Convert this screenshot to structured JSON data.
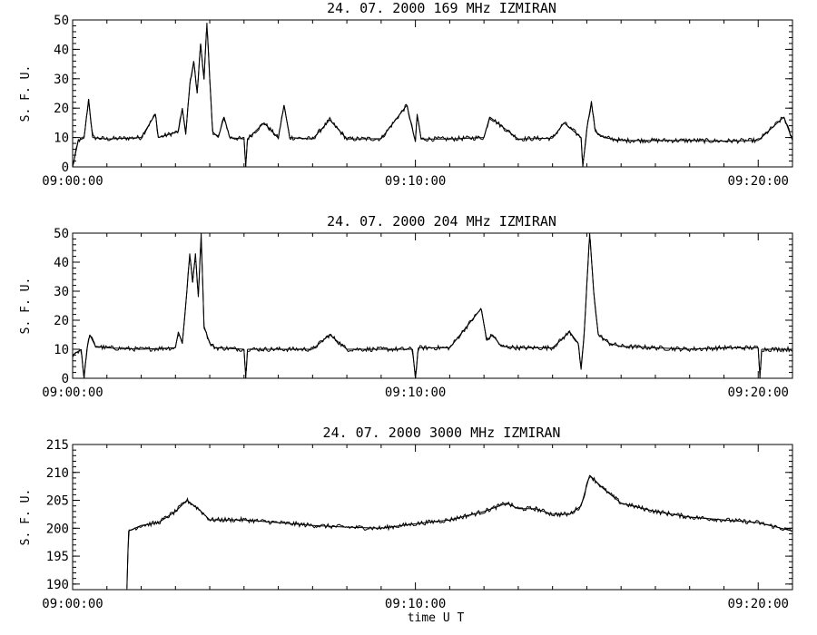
{
  "chart_data": [
    {
      "type": "line",
      "title": "24. 07. 2000   169 MHz   IZMIRAN",
      "ylabel": "S. F. U.",
      "xlabel": "",
      "x_range": [
        "09:00:00",
        "09:21:00"
      ],
      "x_ticks": [
        "09:00:00",
        "09:10:00",
        "09:20:00"
      ],
      "ylim": [
        0,
        50
      ],
      "y_ticks": [
        0,
        10,
        20,
        30,
        40,
        50
      ],
      "grid": false,
      "series": [
        {
          "baseline": 9.5,
          "points": [
            [
              "09:00:00",
              0
            ],
            [
              "09:00:10",
              9
            ],
            [
              "09:00:20",
              9.8
            ],
            [
              "09:00:28",
              23
            ],
            [
              "09:00:35",
              10
            ],
            [
              "09:01:00",
              9.5
            ],
            [
              "09:02:00",
              10
            ],
            [
              "09:02:25",
              18
            ],
            [
              "09:02:30",
              10
            ],
            [
              "09:03:05",
              12
            ],
            [
              "09:03:12",
              20
            ],
            [
              "09:03:18",
              11
            ],
            [
              "09:03:25",
              28
            ],
            [
              "09:03:32",
              36
            ],
            [
              "09:03:38",
              25
            ],
            [
              "09:03:44",
              42
            ],
            [
              "09:03:50",
              30
            ],
            [
              "09:03:55",
              49
            ],
            [
              "09:04:00",
              30
            ],
            [
              "09:04:05",
              12
            ],
            [
              "09:04:15",
              10
            ],
            [
              "09:04:25",
              17
            ],
            [
              "09:04:35",
              10
            ],
            [
              "09:05:00",
              9.5
            ],
            [
              "09:05:03",
              0
            ],
            [
              "09:05:06",
              9.5
            ],
            [
              "09:05:35",
              15
            ],
            [
              "09:06:00",
              9.8
            ],
            [
              "09:06:10",
              21
            ],
            [
              "09:06:20",
              10
            ],
            [
              "09:07:00",
              9.5
            ],
            [
              "09:07:30",
              16
            ],
            [
              "09:08:00",
              9.5
            ],
            [
              "09:09:00",
              9.6
            ],
            [
              "09:09:45",
              21
            ],
            [
              "09:10:00",
              8.5
            ],
            [
              "09:10:03",
              18
            ],
            [
              "09:10:10",
              9.5
            ],
            [
              "09:11:00",
              9.5
            ],
            [
              "09:12:00",
              10
            ],
            [
              "09:12:10",
              17
            ],
            [
              "09:12:30",
              14
            ],
            [
              "09:13:00",
              9.5
            ],
            [
              "09:14:00",
              9.8
            ],
            [
              "09:14:20",
              15
            ],
            [
              "09:14:50",
              10
            ],
            [
              "09:14:53",
              0
            ],
            [
              "09:15:00",
              13
            ],
            [
              "09:15:08",
              22
            ],
            [
              "09:15:15",
              12
            ],
            [
              "09:15:30",
              10
            ],
            [
              "09:16:00",
              9
            ],
            [
              "09:17:00",
              9
            ],
            [
              "09:18:00",
              9
            ],
            [
              "09:19:00",
              8.8
            ],
            [
              "09:20:00",
              9
            ],
            [
              "09:20:45",
              17
            ],
            [
              "09:21:00",
              9
            ]
          ]
        }
      ]
    },
    {
      "type": "line",
      "title": "24. 07. 2000   204 MHz   IZMIRAN",
      "ylabel": "S. F. U.",
      "xlabel": "",
      "x_range": [
        "09:00:00",
        "09:21:00"
      ],
      "x_ticks": [
        "09:00:00",
        "09:10:00",
        "09:20:00"
      ],
      "ylim": [
        0,
        50
      ],
      "y_ticks": [
        0,
        10,
        20,
        30,
        40,
        50
      ],
      "grid": false,
      "series": [
        {
          "baseline": 10.2,
          "points": [
            [
              "09:00:00",
              8
            ],
            [
              "09:00:15",
              10
            ],
            [
              "09:00:20",
              0
            ],
            [
              "09:00:25",
              10
            ],
            [
              "09:00:30",
              15
            ],
            [
              "09:00:40",
              11
            ],
            [
              "09:01:00",
              10.5
            ],
            [
              "09:02:00",
              10
            ],
            [
              "09:03:00",
              10.5
            ],
            [
              "09:03:05",
              16
            ],
            [
              "09:03:12",
              12
            ],
            [
              "09:03:20",
              30
            ],
            [
              "09:03:25",
              43
            ],
            [
              "09:03:30",
              33
            ],
            [
              "09:03:35",
              43
            ],
            [
              "09:03:40",
              28
            ],
            [
              "09:03:45",
              50
            ],
            [
              "09:03:50",
              18
            ],
            [
              "09:04:00",
              12
            ],
            [
              "09:04:10",
              10.5
            ],
            [
              "09:05:00",
              10
            ],
            [
              "09:05:03",
              0
            ],
            [
              "09:05:06",
              10
            ],
            [
              "09:06:00",
              10
            ],
            [
              "09:07:00",
              10
            ],
            [
              "09:07:30",
              15
            ],
            [
              "09:08:00",
              10
            ],
            [
              "09:09:00",
              10
            ],
            [
              "09:09:55",
              10
            ],
            [
              "09:10:00",
              0
            ],
            [
              "09:10:05",
              10.5
            ],
            [
              "09:11:00",
              10.5
            ],
            [
              "09:11:55",
              24
            ],
            [
              "09:12:05",
              13
            ],
            [
              "09:12:15",
              15
            ],
            [
              "09:12:30",
              11
            ],
            [
              "09:13:00",
              10.5
            ],
            [
              "09:14:00",
              10.5
            ],
            [
              "09:14:30",
              16
            ],
            [
              "09:14:45",
              12
            ],
            [
              "09:14:50",
              3
            ],
            [
              "09:14:55",
              14
            ],
            [
              "09:15:00",
              32
            ],
            [
              "09:15:05",
              50
            ],
            [
              "09:15:12",
              30
            ],
            [
              "09:15:20",
              15
            ],
            [
              "09:15:40",
              12
            ],
            [
              "09:16:00",
              11
            ],
            [
              "09:17:00",
              10.5
            ],
            [
              "09:18:00",
              10
            ],
            [
              "09:19:00",
              10.5
            ],
            [
              "09:20:00",
              10.5
            ],
            [
              "09:20:03",
              0
            ],
            [
              "09:20:06",
              10
            ],
            [
              "09:21:00",
              10
            ]
          ]
        }
      ]
    },
    {
      "type": "line",
      "title": "24. 07. 2000   3000 MHz   IZMIRAN",
      "ylabel": "S. F. U.",
      "xlabel": "time   U T",
      "x_range": [
        "09:00:00",
        "09:21:00"
      ],
      "x_ticks": [
        "09:00:00",
        "09:10:00",
        "09:20:00"
      ],
      "ylim": [
        189,
        215
      ],
      "y_ticks": [
        190,
        195,
        200,
        205,
        210,
        215
      ],
      "grid": false,
      "series": [
        {
          "points": [
            [
              "09:01:35",
              189
            ],
            [
              "09:01:38",
              199.5
            ],
            [
              "09:02:00",
              200.5
            ],
            [
              "09:02:30",
              201
            ],
            [
              "09:03:00",
              203
            ],
            [
              "09:03:20",
              205
            ],
            [
              "09:03:40",
              203.5
            ],
            [
              "09:04:00",
              201.5
            ],
            [
              "09:05:00",
              201.5
            ],
            [
              "09:06:00",
              201
            ],
            [
              "09:07:00",
              200.5
            ],
            [
              "09:08:00",
              200.2
            ],
            [
              "09:09:00",
              200
            ],
            [
              "09:10:00",
              200.8
            ],
            [
              "09:11:00",
              201.5
            ],
            [
              "09:12:00",
              203
            ],
            [
              "09:12:40",
              204.5
            ],
            [
              "09:13:00",
              203.5
            ],
            [
              "09:13:30",
              203.5
            ],
            [
              "09:14:00",
              202.5
            ],
            [
              "09:14:30",
              202.5
            ],
            [
              "09:14:50",
              204
            ],
            [
              "09:15:05",
              209.5
            ],
            [
              "09:15:30",
              207
            ],
            [
              "09:16:00",
              204.5
            ],
            [
              "09:17:00",
              203
            ],
            [
              "09:18:00",
              202
            ],
            [
              "09:19:00",
              201.5
            ],
            [
              "09:20:00",
              201
            ],
            [
              "09:21:00",
              199.5
            ]
          ]
        }
      ]
    }
  ]
}
